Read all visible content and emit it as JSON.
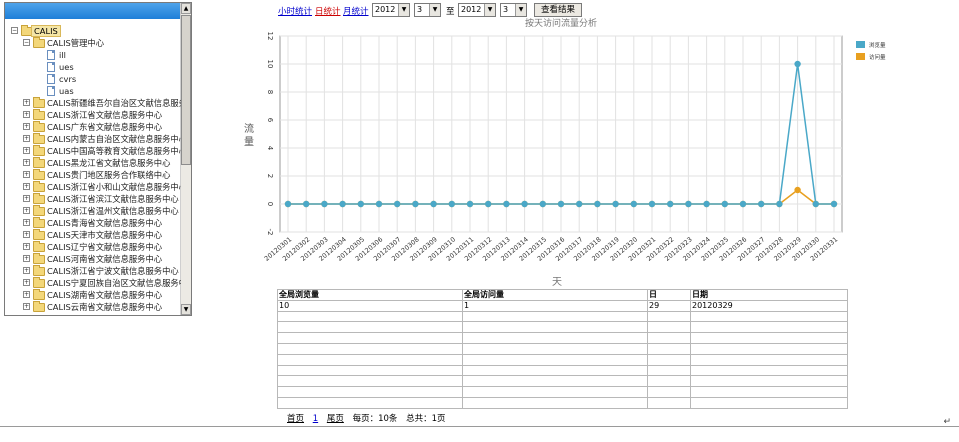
{
  "tree": {
    "root_label": "CALIS",
    "center_label": "CALIS管理中心",
    "sub_items": [
      "ill",
      "ues",
      "cvrs",
      "uas"
    ],
    "centers": [
      "CALIS新疆维吾尔自治区文献信息服务",
      "CALIS浙江省文献信息服务中心",
      "CALIS广东省文献信息服务中心",
      "CALIS内蒙古自治区文献信息服务中心",
      "CALIS中国高等教育文献信息服务中心",
      "CALIS黑龙江省文献信息服务中心",
      "CALIS贵门地区服务合作联络中心",
      "CALIS浙江省小和山文献信息服务中心",
      "CALIS浙江省滨江文献信息服务中心",
      "CALIS浙江省温州文献信息服务中心",
      "CALIS青海省文献信息服务中心",
      "CALIS天津市文献信息服务中心",
      "CALIS辽宁省文献信息服务中心",
      "CALIS河南省文献信息服务中心",
      "CALIS浙江省宁波文献信息服务中心",
      "CALIS宁夏回族自治区文献信息服务中",
      "CALIS湖南省文献信息服务中心",
      "CALIS云南省文献信息服务中心"
    ]
  },
  "controls": {
    "hour_stat": "小时统计",
    "day_stat": "日统计",
    "month_stat": "月统计",
    "from_year": "2012",
    "from_month": "3",
    "to_label": "至",
    "to_year": "2012",
    "to_month": "3",
    "query_button": "查看结果"
  },
  "chart_data": {
    "type": "line",
    "title": "按天访问流量分析",
    "xlabel": "天",
    "ylabel": "流量",
    "x": [
      "20120301",
      "20120302",
      "20120303",
      "20120304",
      "20120305",
      "20120306",
      "20120307",
      "20120308",
      "20120309",
      "20120310",
      "20120311",
      "20120312",
      "20120313",
      "20120314",
      "20120315",
      "20120316",
      "20120317",
      "20120318",
      "20120319",
      "20120320",
      "20120321",
      "20120322",
      "20120323",
      "20120324",
      "20120325",
      "20120326",
      "20120327",
      "20120328",
      "20120329",
      "20120330",
      "20120331"
    ],
    "ylim": [
      -2,
      12
    ],
    "yticks": [
      "-2",
      "0",
      "2",
      "4",
      "6",
      "8",
      "10",
      "12"
    ],
    "series": [
      {
        "name": "浏览量",
        "color": "#4aa8c8",
        "values": [
          0,
          0,
          0,
          0,
          0,
          0,
          0,
          0,
          0,
          0,
          0,
          0,
          0,
          0,
          0,
          0,
          0,
          0,
          0,
          0,
          0,
          0,
          0,
          0,
          0,
          0,
          0,
          0,
          10,
          0,
          0
        ]
      },
      {
        "name": "访问量",
        "color": "#e8a020",
        "values": [
          0,
          0,
          0,
          0,
          0,
          0,
          0,
          0,
          0,
          0,
          0,
          0,
          0,
          0,
          0,
          0,
          0,
          0,
          0,
          0,
          0,
          0,
          0,
          0,
          0,
          0,
          0,
          0,
          1,
          0,
          0
        ]
      }
    ],
    "grid": true,
    "legend_position": "top-right"
  },
  "table": {
    "headers": [
      "全局浏览量",
      "全局访问量",
      "日",
      "日期"
    ],
    "rows": [
      [
        "10",
        "1",
        "29",
        "20120329"
      ]
    ],
    "empty_rows": 9
  },
  "pager": {
    "first": "首页",
    "current": "1",
    "last": "尾页",
    "per_page": "每页：10条",
    "total": "总共：1页"
  },
  "return_mark": "↵"
}
